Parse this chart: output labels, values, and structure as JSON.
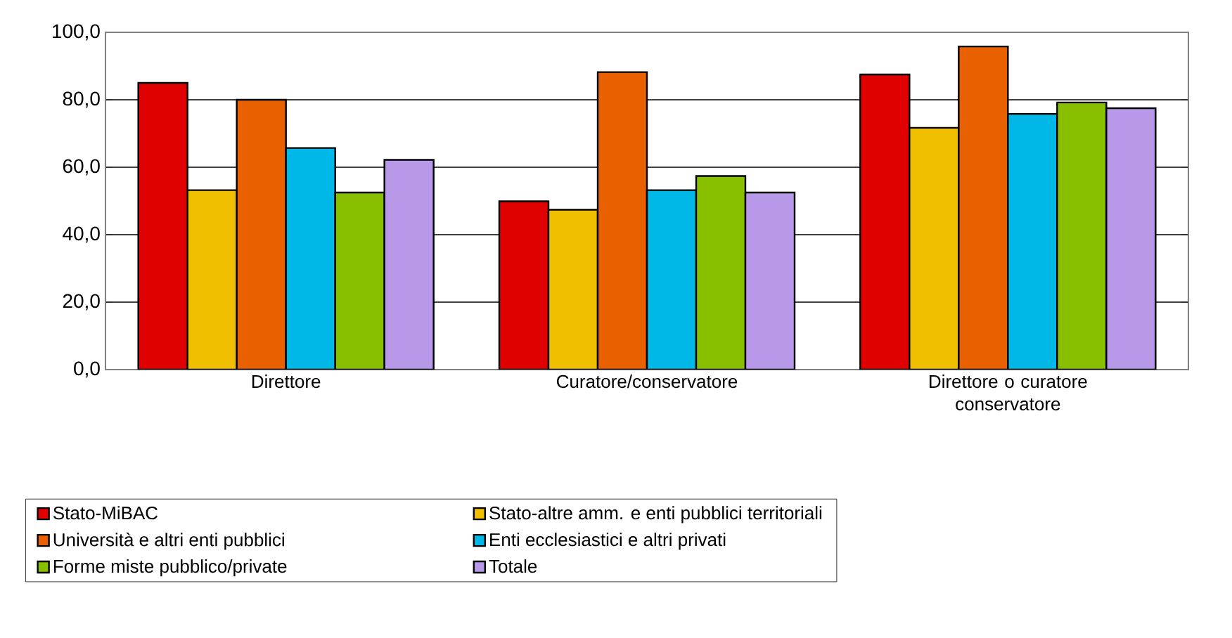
{
  "chart_data": {
    "type": "bar",
    "categories": [
      "Direttore",
      "Curatore/conservatore",
      "Direttore o curatore conservatore"
    ],
    "series": [
      {
        "name": "Stato-MiBAC",
        "color": "#e00000",
        "values": [
          85.0,
          49.9,
          87.5
        ]
      },
      {
        "name": "Stato-altre amm. e enti pubblici territoriali",
        "color": "#f0c000",
        "values": [
          53.2,
          47.4,
          71.7
        ]
      },
      {
        "name": "Università e altri enti pubblici",
        "color": "#e86000",
        "values": [
          80.0,
          88.2,
          95.8
        ]
      },
      {
        "name": "Enti ecclesiastici e altri privati",
        "color": "#00b8e8",
        "values": [
          65.7,
          53.2,
          75.8
        ]
      },
      {
        "name": "Forme miste pubblico/private",
        "color": "#88c000",
        "values": [
          52.5,
          57.4,
          79.2
        ]
      },
      {
        "name": "Totale",
        "color": "#b898e8",
        "values": [
          62.2,
          52.5,
          77.5
        ]
      }
    ],
    "ylim": [
      0,
      100
    ],
    "yticks": [
      {
        "value": 0,
        "label": "0,0"
      },
      {
        "value": 20,
        "label": "20,0"
      },
      {
        "value": 40,
        "label": "40,0"
      },
      {
        "value": 60,
        "label": "60,0"
      },
      {
        "value": 80,
        "label": "80,0"
      },
      {
        "value": 100,
        "label": "100,0"
      }
    ],
    "grid": "y",
    "legend": "bottom"
  }
}
